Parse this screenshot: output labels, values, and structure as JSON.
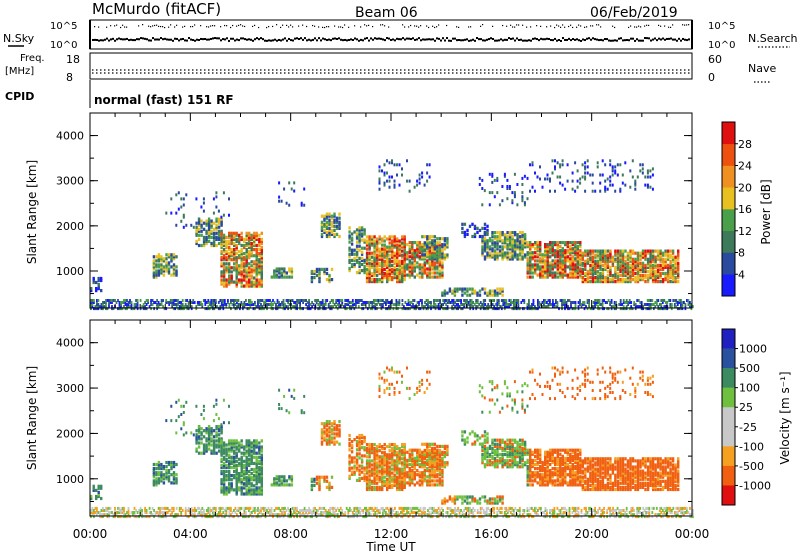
{
  "header": {
    "station": "McMurdo (fitACF)",
    "beam": "Beam 06",
    "date": "06/Feb/2019"
  },
  "status_panels": {
    "nsky_label": "N.Sky",
    "nsearch_label": "N.Search",
    "noise_ticks": [
      "10^5",
      "10^0"
    ],
    "freq_label_1": "Freq.",
    "freq_label_2": "[MHz]",
    "freq_ticks": [
      "18",
      "8"
    ],
    "nave_label": "Nave",
    "nave_ticks": [
      "60",
      "0"
    ],
    "cpid_label": "CPID",
    "cpid_text": "normal (fast) 151 RF"
  },
  "time_axis": {
    "label": "Time UT",
    "ticks": [
      "00:00",
      "04:00",
      "08:00",
      "12:00",
      "16:00",
      "20:00",
      "00:00"
    ]
  },
  "colors": {
    "power": [
      "#1a1aff",
      "#2a4aa0",
      "#3d7a5a",
      "#4aa04a",
      "#e8c020",
      "#f09020",
      "#ee5010",
      "#e01010"
    ],
    "velocity": [
      "#e01010",
      "#f06010",
      "#f5a020",
      "#c8c8c8",
      "#c8c8c8",
      "#70c040",
      "#3c8a60",
      "#2a50a0",
      "#2020c0"
    ]
  },
  "chart_data": [
    {
      "type": "heatmap",
      "quantity": "Power",
      "ylabel": "Slant Range [km]",
      "xlabel": "",
      "x_range_hours": [
        0,
        24
      ],
      "ylim": [
        180,
        4500
      ],
      "yticks": [
        "1000",
        "2000",
        "3000",
        "4000"
      ],
      "colorbar_label": "Power [dB]",
      "colorbar_ticks": [
        "4",
        "8",
        "12",
        "16",
        "20",
        "24",
        "28"
      ],
      "colorbar_range": [
        0,
        32
      ]
    },
    {
      "type": "heatmap",
      "quantity": "Velocity",
      "ylabel": "Slant Range [km]",
      "xlabel": "Time UT",
      "x_range_hours": [
        0,
        24
      ],
      "ylim": [
        180,
        4500
      ],
      "yticks": [
        "1000",
        "2000",
        "3000",
        "4000"
      ],
      "colorbar_label": "Velocity [m s⁻¹]",
      "colorbar_ticks": [
        "1000",
        "500",
        "100",
        "25",
        "-25",
        "-100",
        "-500",
        "-1000"
      ]
    }
  ]
}
